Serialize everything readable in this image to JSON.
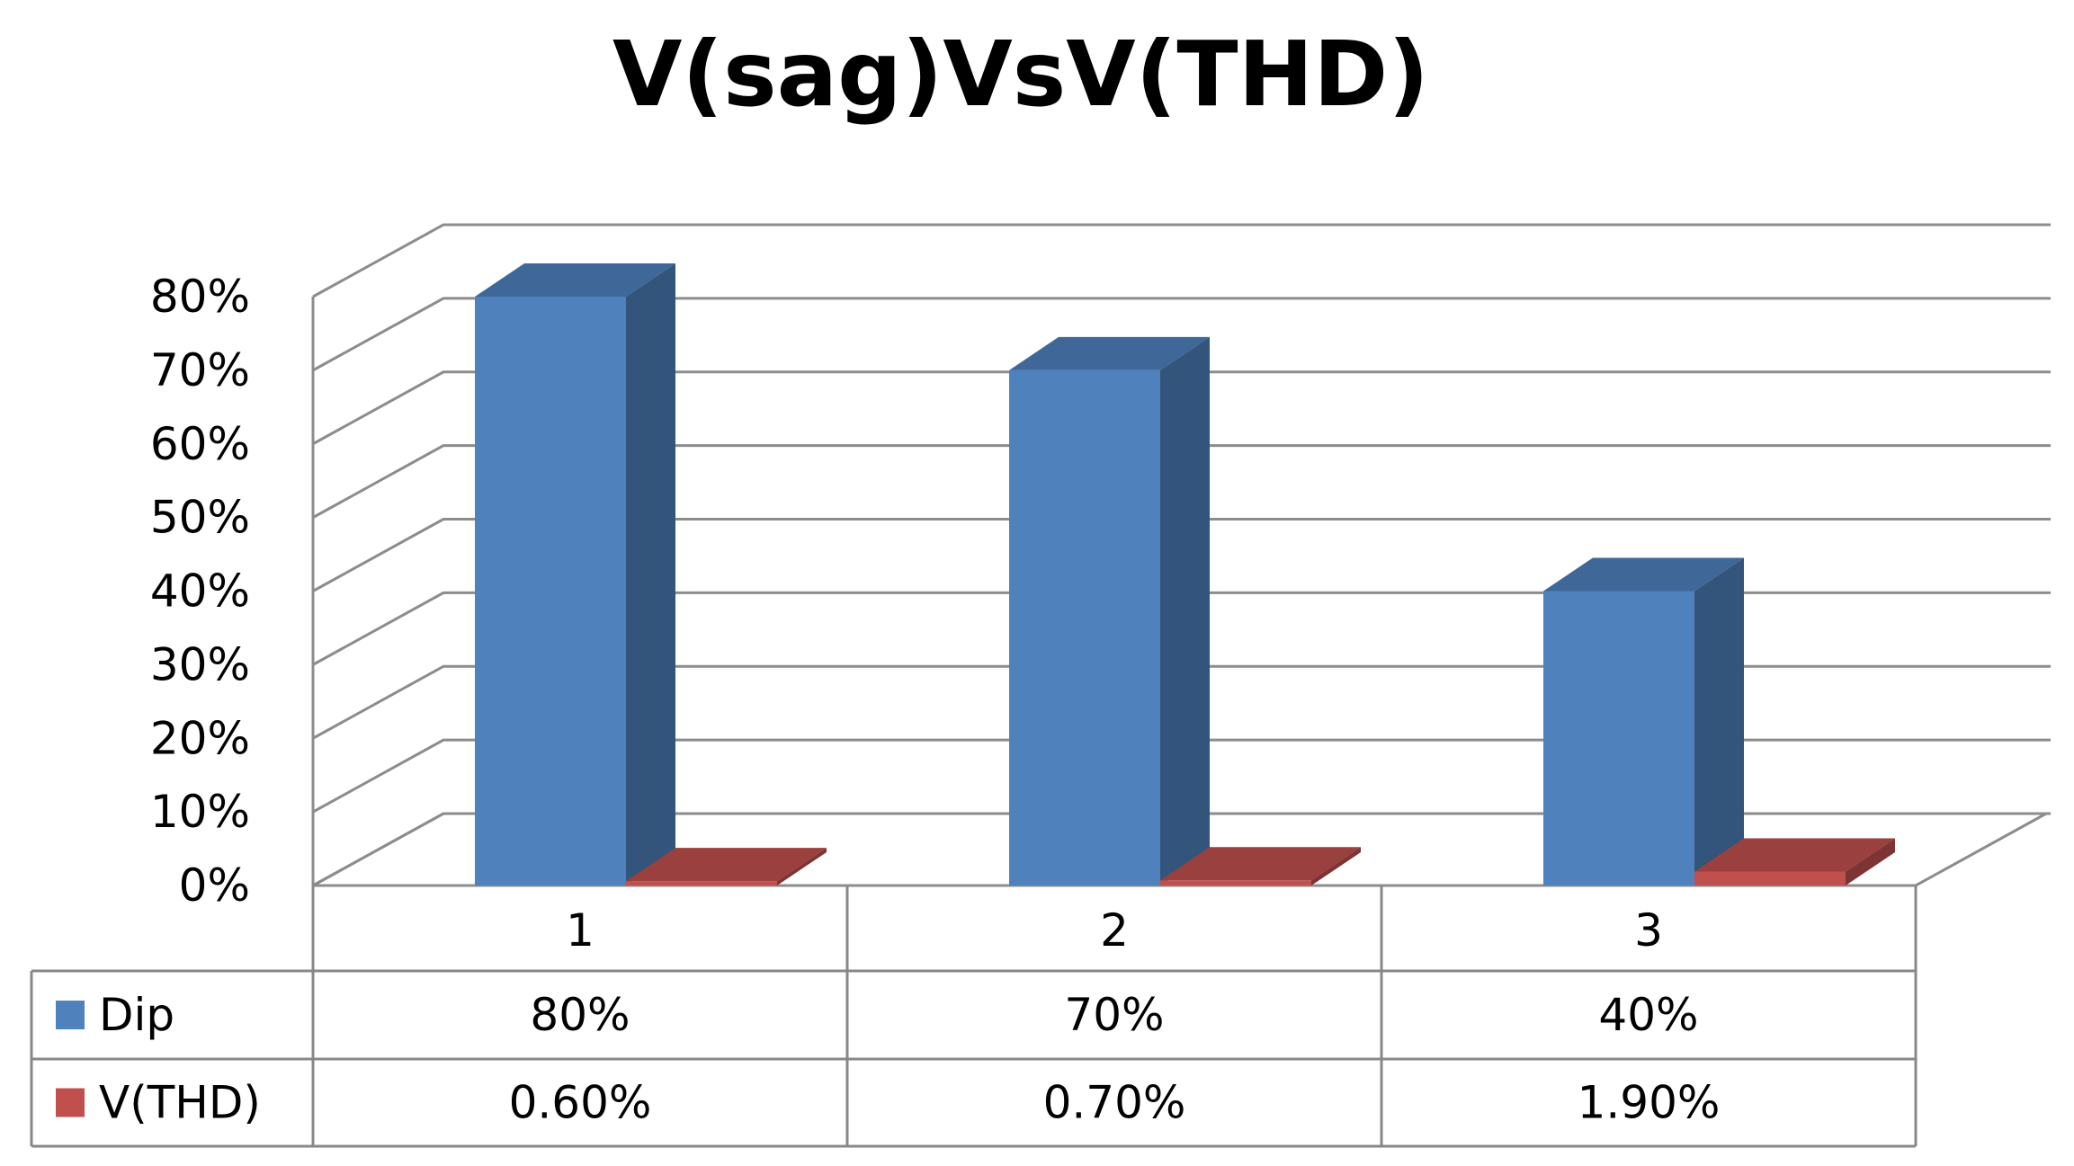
{
  "chart_data": {
    "type": "bar",
    "title": "V(sag)VsV(THD)",
    "categories": [
      "1",
      "2",
      "3"
    ],
    "series": [
      {
        "name": "Dip",
        "values": [
          80,
          70,
          40
        ],
        "labels": [
          "80%",
          "70%",
          "40%"
        ],
        "color": "#4f81bd"
      },
      {
        "name": "V(THD)",
        "values": [
          0.6,
          0.7,
          1.9
        ],
        "labels": [
          "0.60%",
          "0.70%",
          "1.90%"
        ],
        "color": "#c0504d"
      }
    ],
    "y_ticks": [
      "0%",
      "10%",
      "20%",
      "30%",
      "40%",
      "50%",
      "60%",
      "70%",
      "80%"
    ],
    "ylim": [
      0,
      80
    ],
    "grid": true,
    "style": "3d-clustered-column",
    "legend": "data-table"
  }
}
